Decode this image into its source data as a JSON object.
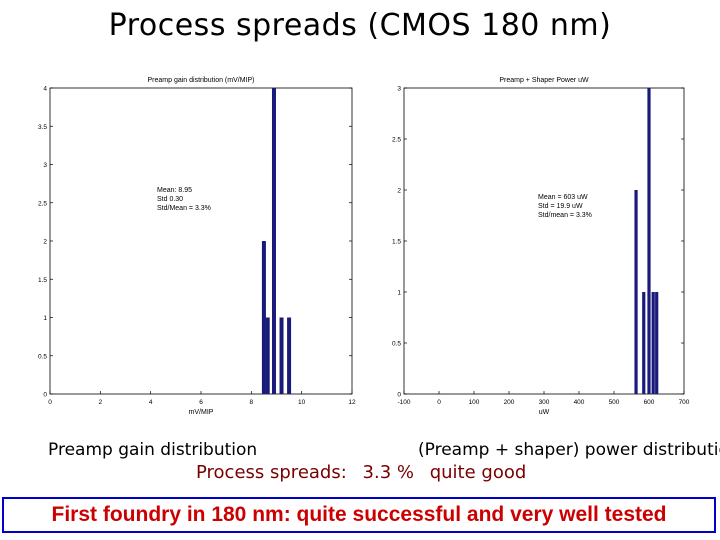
{
  "slide": {
    "title": "Process spreads (CMOS 180 nm)",
    "caption_left": "Preamp gain distribution",
    "caption_right": "(Preamp + shaper) power distribution",
    "summary_label": "Process spreads:",
    "summary_value": "3.3 %",
    "summary_note": "quite good",
    "banner": "First foundry in 180 nm: quite successful and very well tested"
  },
  "chart_data": [
    {
      "type": "bar",
      "title": "Preamp gain distribution (mV/MIP)",
      "xlabel": "mV/MIP",
      "ylabel": "",
      "xlim": [
        0,
        12
      ],
      "ylim": [
        0,
        4
      ],
      "xticks": [
        "0",
        "2",
        "4",
        "6",
        "8",
        "10",
        "12"
      ],
      "yticks": [
        "0",
        "0.5",
        "1",
        "1.5",
        "2",
        "2.5",
        "3",
        "3.5",
        "4"
      ],
      "bars": [
        {
          "x": 8.5,
          "value": 2
        },
        {
          "x": 8.65,
          "value": 1
        },
        {
          "x": 8.9,
          "value": 4
        },
        {
          "x": 9.2,
          "value": 1
        },
        {
          "x": 9.5,
          "value": 1
        }
      ],
      "annotation": [
        "Mean: 8.95",
        "Std    0.30",
        "Std/Mean = 3.3%"
      ],
      "bar_color": "#1a1a7a",
      "grid": false
    },
    {
      "type": "bar",
      "title": "Preamp + Shaper Power uW",
      "xlabel": "uW",
      "ylabel": "",
      "xlim": [
        -100,
        700
      ],
      "ylim": [
        0,
        3
      ],
      "xticks": [
        "-100",
        "0",
        "100",
        "200",
        "300",
        "400",
        "500",
        "600",
        "700"
      ],
      "yticks": [
        "0",
        "0.5",
        "1",
        "1.5",
        "2",
        "2.5",
        "3"
      ],
      "bars": [
        {
          "x": 563,
          "value": 2
        },
        {
          "x": 585,
          "value": 1
        },
        {
          "x": 600,
          "value": 3
        },
        {
          "x": 612,
          "value": 1
        },
        {
          "x": 622,
          "value": 1
        }
      ],
      "annotation": [
        "Mean = 603 uW",
        "Std =  19.9 uW",
        "Std/mean = 3.3%"
      ],
      "bar_color": "#1a1a7a",
      "grid": false
    }
  ]
}
